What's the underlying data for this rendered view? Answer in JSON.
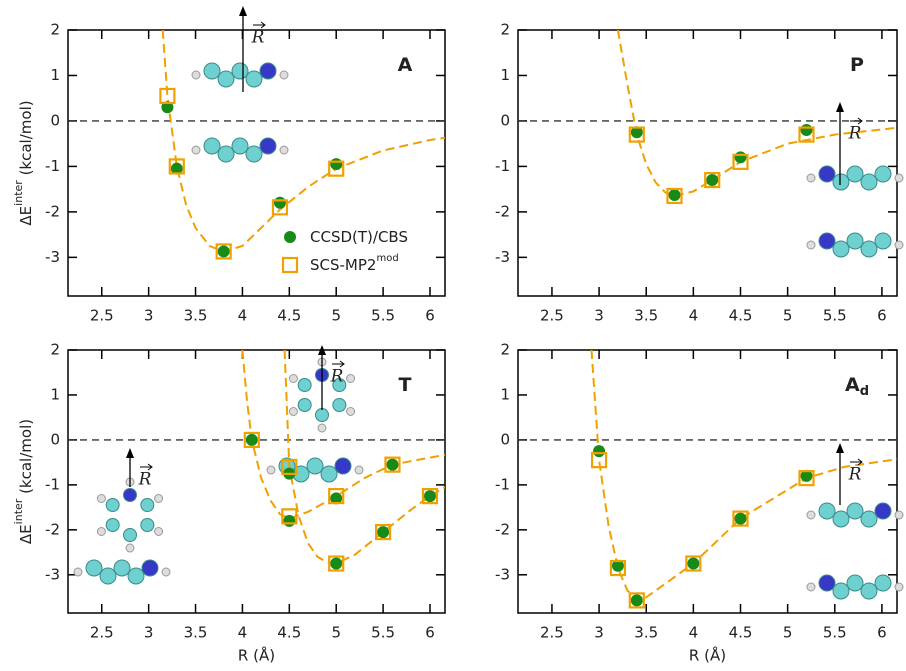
{
  "chart_data": [
    {
      "type": "scatter",
      "label": "A",
      "ylabel": {
        "text": "ΔE",
        "sup": "inter",
        "unit": " (kcal/mol)"
      },
      "xlim": [
        2.14,
        6.16
      ],
      "ylim": [
        -3.85,
        2
      ],
      "xticks": [
        2.5,
        3,
        3.5,
        4,
        4.5,
        5,
        5.5,
        6
      ],
      "yticks": [
        -3,
        -2,
        -1,
        0,
        1,
        2
      ],
      "reference_line": 0,
      "legend": true,
      "annotations": [
        "R"
      ],
      "series": [
        {
          "name": "CCSD(T)/CBS",
          "marker": "circle",
          "color": "#178a17",
          "x": [
            3.2,
            3.3,
            3.8,
            4.4,
            5.0
          ],
          "values": [
            0.3,
            -1.05,
            -2.87,
            -1.8,
            -0.95
          ]
        },
        {
          "name": "SCS-MP2",
          "name_sup": "mod",
          "marker": "square",
          "color": "#f0a000",
          "x": [
            3.2,
            3.3,
            3.8,
            4.4,
            5.0
          ],
          "values": [
            0.55,
            -1.0,
            -2.87,
            -1.9,
            -1.05
          ]
        }
      ],
      "fits": [
        {
          "color": "#f0a000",
          "x": [
            3.15,
            3.2,
            3.3,
            3.4,
            3.5,
            3.65,
            3.8,
            4.0,
            4.2,
            4.4,
            4.7,
            5.0,
            5.5,
            6.0,
            6.16
          ],
          "values": [
            2,
            0.55,
            -1.0,
            -1.85,
            -2.35,
            -2.75,
            -2.87,
            -2.75,
            -2.35,
            -1.95,
            -1.45,
            -1.05,
            -0.65,
            -0.42,
            -0.37
          ]
        }
      ]
    },
    {
      "type": "scatter",
      "label": "P",
      "xlim": [
        2.14,
        6.16
      ],
      "ylim": [
        -3.85,
        2
      ],
      "xticks": [
        2.5,
        3,
        3.5,
        4,
        4.5,
        5,
        5.5,
        6
      ],
      "yticks": [
        -3,
        -2,
        -1,
        0,
        1,
        2
      ],
      "reference_line": 0,
      "annotations": [
        "R"
      ],
      "series": [
        {
          "marker": "circle",
          "color": "#178a17",
          "x": [
            3.4,
            3.8,
            4.2,
            4.5,
            5.2
          ],
          "values": [
            -0.25,
            -1.63,
            -1.3,
            -0.8,
            -0.2
          ]
        },
        {
          "marker": "square",
          "color": "#f0a000",
          "x": [
            3.4,
            3.8,
            4.2,
            4.5,
            5.2
          ],
          "values": [
            -0.3,
            -1.65,
            -1.3,
            -0.9,
            -0.3
          ]
        }
      ],
      "fits": [
        {
          "color": "#f0a000",
          "x": [
            3.2,
            3.3,
            3.4,
            3.5,
            3.6,
            3.7,
            3.8,
            4.0,
            4.2,
            4.5,
            5.0,
            5.5,
            6.16
          ],
          "values": [
            2,
            0.8,
            -0.3,
            -0.95,
            -1.35,
            -1.57,
            -1.65,
            -1.55,
            -1.3,
            -0.9,
            -0.5,
            -0.3,
            -0.15
          ]
        }
      ]
    },
    {
      "type": "scatter",
      "label": "T",
      "ylabel": {
        "text": "ΔE",
        "sup": "inter",
        "unit": " (kcal/mol)"
      },
      "xlabel": "R (Å)",
      "xlim": [
        2.14,
        6.16
      ],
      "ylim": [
        -3.85,
        2
      ],
      "xticks": [
        2.5,
        3,
        3.5,
        4,
        4.5,
        5,
        5.5,
        6
      ],
      "yticks": [
        -3,
        -2,
        -1,
        0,
        1,
        2
      ],
      "reference_line": 0,
      "annotations": [
        "R",
        "R"
      ],
      "series": [
        {
          "marker": "circle",
          "color": "#178a17",
          "x": [
            4.1,
            4.5,
            4.5,
            5.0,
            5.0,
            5.5,
            5.6,
            6.0
          ],
          "values": [
            0,
            -0.75,
            -1.8,
            -1.3,
            -2.75,
            -2.05,
            -0.55,
            -1.25
          ]
        },
        {
          "marker": "square",
          "color": "#f0a000",
          "x": [
            4.1,
            4.5,
            4.5,
            5.0,
            5.0,
            5.5,
            5.6,
            6.0
          ],
          "values": [
            0,
            -0.6,
            -1.7,
            -1.25,
            -2.75,
            -2.05,
            -0.55,
            -1.25
          ]
        }
      ],
      "fits": [
        {
          "color": "#f0a000",
          "x": [
            4.0,
            4.05,
            4.1,
            4.2,
            4.3,
            4.4,
            4.5,
            4.7,
            5.0,
            5.3,
            5.6,
            6.16
          ],
          "values": [
            2,
            0.85,
            0,
            -0.85,
            -1.35,
            -1.65,
            -1.75,
            -1.6,
            -1.25,
            -0.85,
            -0.55,
            -0.33
          ]
        },
        {
          "color": "#f0a000",
          "x": [
            4.45,
            4.5,
            4.6,
            4.7,
            4.8,
            4.9,
            5.0,
            5.2,
            5.5,
            5.8,
            6.0,
            6.16
          ],
          "values": [
            2,
            -0.6,
            -1.7,
            -2.3,
            -2.6,
            -2.72,
            -2.75,
            -2.55,
            -2.05,
            -1.55,
            -1.25,
            -1.05
          ]
        }
      ]
    },
    {
      "type": "scatter",
      "label": "A",
      "label_subscript": "d",
      "xlabel": "R (Å)",
      "xlim": [
        2.14,
        6.16
      ],
      "ylim": [
        -3.85,
        2
      ],
      "xticks": [
        2.5,
        3,
        3.5,
        4,
        4.5,
        5,
        5.5,
        6
      ],
      "yticks": [
        -3,
        -2,
        -1,
        0,
        1,
        2
      ],
      "reference_line": 0,
      "annotations": [
        "R"
      ],
      "series": [
        {
          "marker": "circle",
          "color": "#178a17",
          "x": [
            3.0,
            3.2,
            3.4,
            4.0,
            4.5,
            5.2
          ],
          "values": [
            -0.25,
            -2.8,
            -3.57,
            -2.75,
            -1.75,
            -0.8
          ]
        },
        {
          "marker": "square",
          "color": "#f0a000",
          "x": [
            3.0,
            3.2,
            3.4,
            4.0,
            4.5,
            5.2
          ],
          "values": [
            -0.45,
            -2.85,
            -3.57,
            -2.75,
            -1.75,
            -0.85
          ]
        }
      ],
      "fits": [
        {
          "color": "#f0a000",
          "x": [
            2.92,
            3.0,
            3.1,
            3.2,
            3.3,
            3.4,
            3.5,
            3.7,
            4.0,
            4.5,
            5.2,
            5.6,
            6.16
          ],
          "values": [
            2,
            -0.45,
            -1.9,
            -2.85,
            -3.35,
            -3.55,
            -3.5,
            -3.2,
            -2.75,
            -1.75,
            -0.85,
            -0.6,
            -0.43
          ]
        }
      ]
    }
  ]
}
